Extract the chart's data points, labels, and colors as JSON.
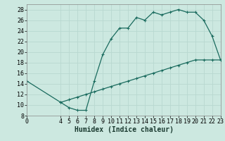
{
  "xlabel": "Humidex (Indice chaleur)",
  "bg_color": "#cce8e0",
  "grid_color": "#b8d8d0",
  "line_color": "#1a6b5e",
  "xlim": [
    0,
    23
  ],
  "ylim": [
    8,
    29
  ],
  "xticks": [
    0,
    4,
    5,
    6,
    7,
    8,
    9,
    10,
    11,
    12,
    13,
    14,
    15,
    16,
    17,
    18,
    19,
    20,
    21,
    22,
    23
  ],
  "yticks": [
    8,
    10,
    12,
    14,
    16,
    18,
    20,
    22,
    24,
    26,
    28
  ],
  "line1_x": [
    4,
    5,
    6,
    7,
    8,
    9,
    10,
    11,
    12,
    13,
    14,
    15,
    16,
    17,
    18,
    19,
    20,
    21,
    22,
    23
  ],
  "line1_y": [
    10.5,
    9.5,
    9.0,
    9.0,
    14.5,
    19.5,
    22.5,
    24.5,
    24.5,
    26.5,
    26.0,
    27.5,
    27.0,
    27.5,
    28.0,
    27.5,
    27.5,
    26.0,
    23.0,
    18.5
  ],
  "line2_x": [
    0,
    4,
    5,
    6,
    7,
    8,
    9,
    10,
    11,
    12,
    13,
    14,
    15,
    16,
    17,
    18,
    19,
    20,
    21,
    22,
    23
  ],
  "line2_y": [
    14.5,
    10.5,
    11.0,
    11.5,
    12.0,
    12.5,
    13.0,
    13.5,
    14.0,
    14.5,
    15.0,
    15.5,
    16.0,
    16.5,
    17.0,
    17.5,
    18.0,
    18.5,
    18.5,
    18.5,
    18.5
  ],
  "tick_fontsize": 6,
  "xlabel_fontsize": 7,
  "marker_size": 3,
  "line_width": 0.9
}
